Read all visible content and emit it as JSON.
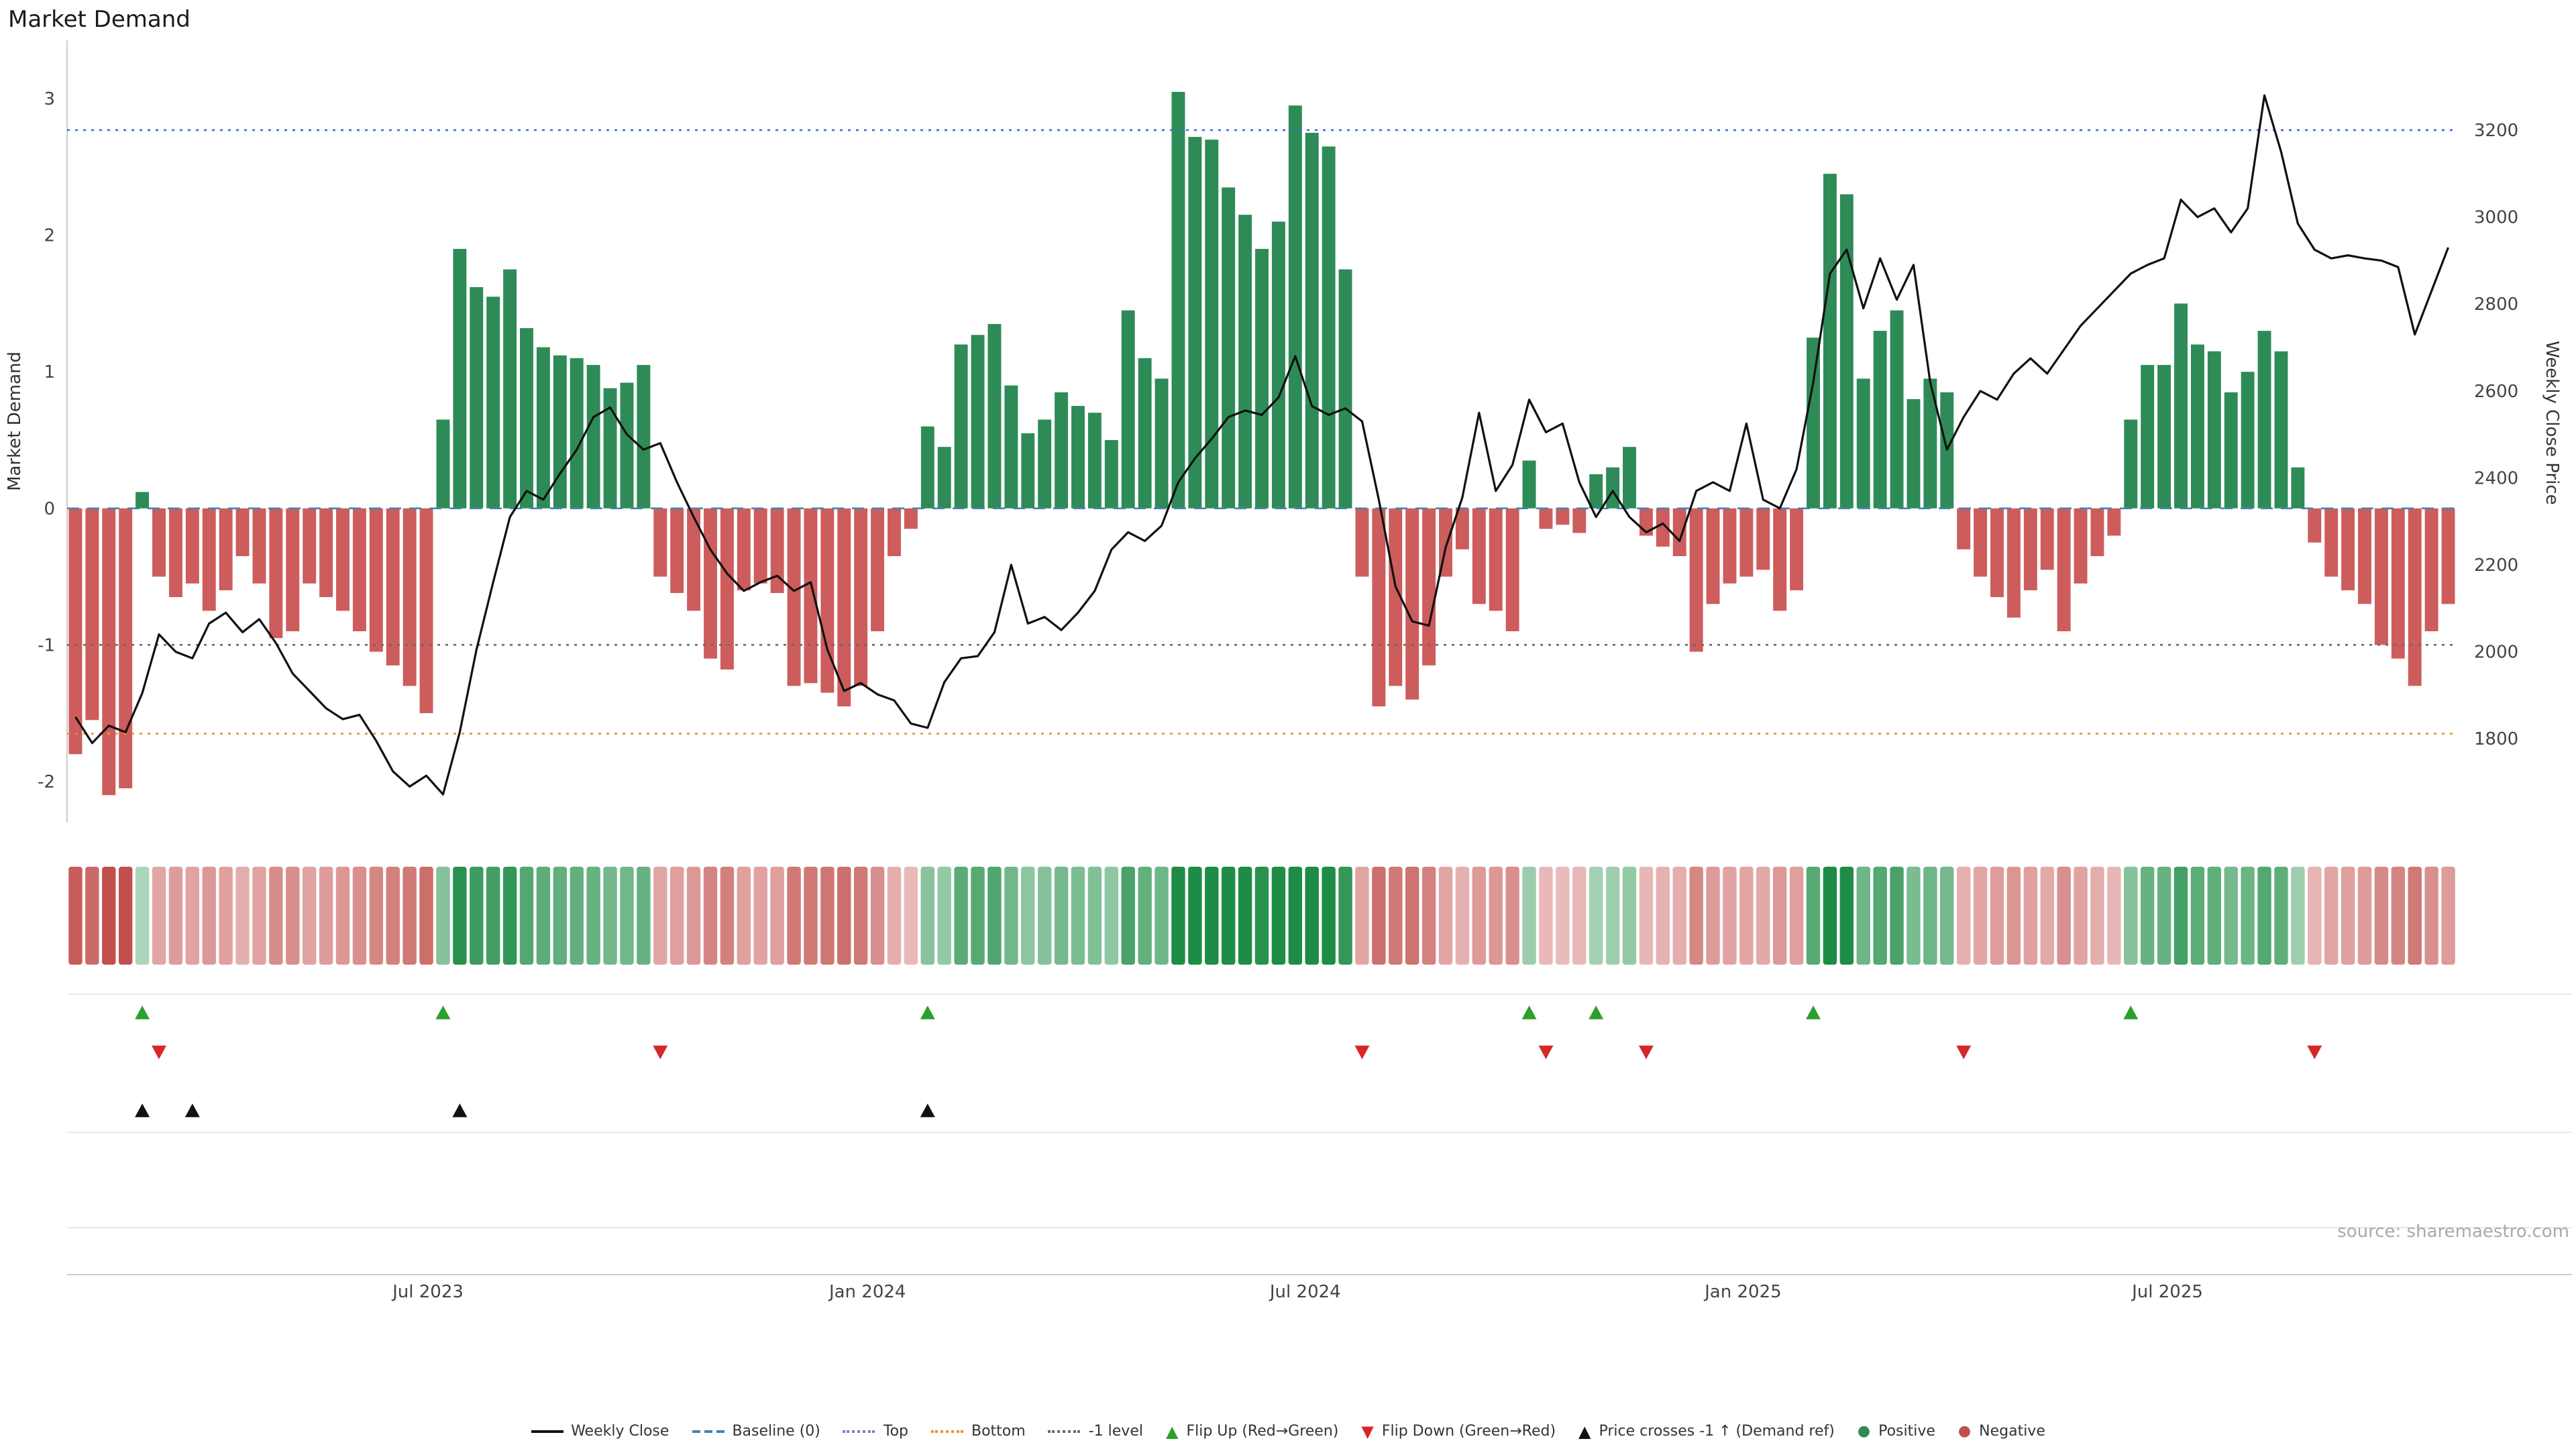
{
  "page": {
    "title": "Market Demand",
    "source": "source: sharemaestro.com"
  },
  "axes": {
    "left_title": "Market Demand",
    "right_title": "Weekly Close Price"
  },
  "colors": {
    "positive": "#2e8b57",
    "negative": "#cd5c5c",
    "flip_up": "#2ca02c",
    "flip_down": "#d62728",
    "price_cross": "#111111",
    "price_line": "#111111"
  },
  "chart_data": {
    "type": "bar+line",
    "title": "Market Demand",
    "x_unit": "weeks",
    "legend_position": "bottom",
    "grid": false,
    "demand_ticks": [
      3,
      2,
      1,
      0,
      -1,
      -2
    ],
    "price_ticks": [
      3200,
      3000,
      2800,
      2600,
      2400,
      2200,
      2000,
      1800
    ],
    "x_ticks": [
      {
        "label": "Jul 2023",
        "week": 21.6
      },
      {
        "label": "Jan 2024",
        "week": 47.9
      },
      {
        "label": "Jul 2024",
        "week": 74.1
      },
      {
        "label": "Jan 2025",
        "week": 100.3
      },
      {
        "label": "Jul 2025",
        "week": 125.7
      }
    ],
    "demand_axis": {
      "min": -2.3,
      "max": 3.31
    },
    "price_axis_map": {
      "p1": 1800,
      "y1": 550.6,
      "p2": 3200,
      "y2": 97
    },
    "ref_lines": [
      {
        "name": "Baseline (0)",
        "value": 0,
        "style": "dashed",
        "color": "#4682b4"
      },
      {
        "name": "Top",
        "value": 2.77,
        "style": "dotted",
        "color": "#4169e1"
      },
      {
        "name": "Bottom",
        "value": -1.65,
        "style": "dotted",
        "color": "#e8952e"
      },
      {
        "name": "-1 level",
        "value": -1,
        "style": "dotted",
        "color": "#696969"
      }
    ],
    "series": [
      {
        "name": "Market Demand",
        "type": "bar",
        "axis": "left",
        "values": [
          -1.8,
          -1.55,
          -2.1,
          -2.05,
          0.12,
          -0.5,
          -0.65,
          -0.55,
          -0.75,
          -0.6,
          -0.35,
          -0.55,
          -0.95,
          -0.9,
          -0.55,
          -0.65,
          -0.75,
          -0.9,
          -1.05,
          -1.15,
          -1.3,
          -1.5,
          0.65,
          1.9,
          1.62,
          1.55,
          1.75,
          1.32,
          1.18,
          1.12,
          1.1,
          1.05,
          0.88,
          0.92,
          1.05,
          -0.5,
          -0.62,
          -0.75,
          -1.1,
          -1.18,
          -0.6,
          -0.55,
          -0.62,
          -1.3,
          -1.28,
          -1.35,
          -1.45,
          -1.3,
          -0.9,
          -0.35,
          -0.15,
          0.6,
          0.45,
          1.2,
          1.27,
          1.35,
          0.9,
          0.55,
          0.65,
          0.85,
          0.75,
          0.7,
          0.5,
          1.45,
          1.1,
          0.95,
          3.05,
          2.72,
          2.7,
          2.35,
          2.15,
          1.9,
          2.1,
          2.95,
          2.75,
          2.65,
          1.75,
          -0.5,
          -1.45,
          -1.3,
          -1.4,
          -1.15,
          -0.5,
          -0.3,
          -0.7,
          -0.75,
          -0.9,
          0.35,
          -0.15,
          -0.12,
          -0.18,
          0.25,
          0.3,
          0.45,
          -0.2,
          -0.28,
          -0.35,
          -1.05,
          -0.7,
          -0.55,
          -0.5,
          -0.45,
          -0.75,
          -0.6,
          1.25,
          2.45,
          2.3,
          0.95,
          1.3,
          1.45,
          0.8,
          0.95,
          0.85,
          -0.3,
          -0.5,
          -0.65,
          -0.8,
          -0.6,
          -0.45,
          -0.9,
          -0.55,
          -0.35,
          -0.2,
          0.65,
          1.05,
          1.05,
          1.5,
          1.2,
          1.15,
          0.85,
          1.0,
          1.3,
          1.15,
          0.3,
          -0.25,
          -0.5,
          -0.6,
          -0.7,
          -1.0,
          -1.1,
          -1.3,
          -0.9,
          -0.7
        ]
      },
      {
        "name": "Weekly Close",
        "type": "line",
        "axis": "right",
        "values": [
          1850,
          1790,
          1830,
          1815,
          1905,
          2040,
          2000,
          1985,
          2065,
          2090,
          2045,
          2075,
          2020,
          1950,
          1910,
          1870,
          1845,
          1855,
          1795,
          1725,
          1690,
          1715,
          1672,
          1815,
          2005,
          2160,
          2310,
          2370,
          2350,
          2410,
          2465,
          2540,
          2562,
          2500,
          2465,
          2480,
          2390,
          2310,
          2235,
          2180,
          2140,
          2160,
          2175,
          2140,
          2160,
          2005,
          1910,
          1928,
          1902,
          1888,
          1835,
          1825,
          1930,
          1985,
          1990,
          2045,
          2200,
          2065,
          2080,
          2050,
          2090,
          2140,
          2235,
          2275,
          2255,
          2290,
          2390,
          2445,
          2490,
          2540,
          2555,
          2545,
          2585,
          2680,
          2565,
          2545,
          2560,
          2530,
          2350,
          2150,
          2070,
          2060,
          2240,
          2355,
          2550,
          2370,
          2430,
          2580,
          2505,
          2525,
          2390,
          2310,
          2370,
          2310,
          2275,
          2295,
          2255,
          2370,
          2390,
          2370,
          2525,
          2350,
          2330,
          2420,
          2620,
          2870,
          2925,
          2790,
          2905,
          2810,
          2890,
          2620,
          2465,
          2540,
          2600,
          2580,
          2640,
          2675,
          2640,
          2695,
          2750,
          2790,
          2830,
          2870,
          2890,
          2905,
          3040,
          3000,
          3020,
          2965,
          3020,
          3280,
          3150,
          2985,
          2925,
          2905,
          2912,
          2905,
          2900,
          2885,
          2730,
          2830,
          2930
        ]
      }
    ],
    "markers": {
      "flip_up": [
        4,
        22,
        51,
        87,
        91,
        104,
        123
      ],
      "flip_down": [
        5,
        35,
        77,
        88,
        94,
        113,
        134
      ],
      "price_cross_up": [
        4,
        7,
        23,
        51
      ]
    }
  },
  "legend": {
    "items": [
      {
        "label": "Weekly Close",
        "type": "line-solid",
        "color": "#111111"
      },
      {
        "label": "Baseline (0)",
        "type": "line-dashed",
        "color": "#4682b4"
      },
      {
        "label": "Top",
        "type": "line-dotted",
        "color": "#7a84c8"
      },
      {
        "label": "Bottom",
        "type": "line-dotted",
        "color": "#e8952e"
      },
      {
        "label": "-1 level",
        "type": "line-dotted",
        "color": "#696969"
      },
      {
        "label": "Flip Up (Red→Green)",
        "type": "tri-up",
        "color": "#2ca02c"
      },
      {
        "label": "Flip Down (Green→Red)",
        "type": "tri-down",
        "color": "#d62728"
      },
      {
        "label": "Price crosses -1 ↑ (Demand ref)",
        "type": "tri-up",
        "color": "#111111"
      },
      {
        "label": "Positive",
        "type": "dot",
        "color": "#2e8b57"
      },
      {
        "label": "Negative",
        "type": "dot",
        "color": "#c0504d"
      }
    ]
  }
}
